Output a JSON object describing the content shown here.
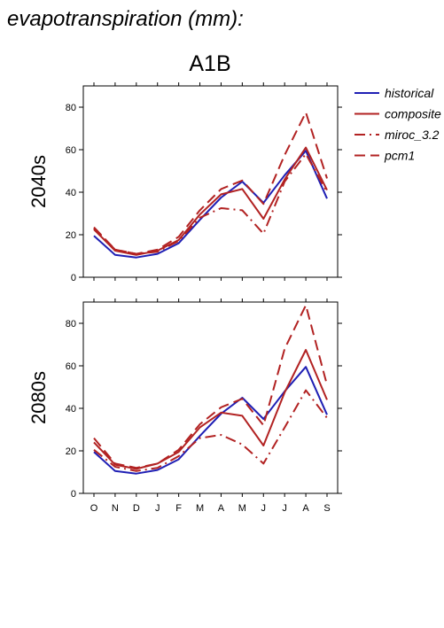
{
  "title": "evapotranspiration (mm):",
  "scenario": "A1B",
  "chart_data": {
    "type": "line",
    "categories": [
      "O",
      "N",
      "D",
      "J",
      "F",
      "M",
      "A",
      "M",
      "J",
      "J",
      "A",
      "S"
    ],
    "ylim": [
      0,
      90
    ],
    "yticks": [
      0,
      20,
      40,
      60,
      80
    ],
    "legend_placement": "right",
    "grid": false,
    "colors": {
      "historical": "#1f1fb4",
      "model": "#b22222"
    },
    "legend": [
      {
        "name": "historical",
        "style": "solid",
        "color": "#1f1fb4"
      },
      {
        "name": "composite",
        "style": "solid",
        "color": "#b22222"
      },
      {
        "name": "miroc_3.2",
        "style": "dashdot",
        "color": "#b22222"
      },
      {
        "name": "pcm1",
        "style": "dash",
        "color": "#b22222"
      }
    ],
    "panels": [
      {
        "label": "2040s",
        "series": [
          {
            "name": "historical",
            "values": [
              19.5,
              10.5,
              9.3,
              11,
              16,
              27,
              37.5,
              45,
              35,
              48,
              59.5,
              37
            ]
          },
          {
            "name": "composite",
            "values": [
              22.5,
              12.5,
              10.5,
              12.5,
              17.5,
              29.5,
              39,
              41.5,
              27.5,
              46,
              61,
              41
            ]
          },
          {
            "name": "miroc_3.2",
            "values": [
              23,
              13,
              11,
              12,
              17,
              28,
              32.5,
              31.5,
              20.5,
              45,
              58,
              40
            ]
          },
          {
            "name": "pcm1",
            "values": [
              23.5,
              13,
              11,
              13,
              19,
              31.5,
              41.5,
              45.5,
              34.5,
              57.5,
              77.5,
              46.5
            ]
          }
        ]
      },
      {
        "label": "2080s",
        "series": [
          {
            "name": "historical",
            "values": [
              19.5,
              10.5,
              9.3,
              11,
              16,
              27,
              37.5,
              45,
              35,
              48,
              59.5,
              37
            ]
          },
          {
            "name": "composite",
            "values": [
              24,
              13.5,
              11.5,
              14,
              19.5,
              31,
              38,
              36.5,
              22.5,
              47.5,
              67.5,
              44
            ]
          },
          {
            "name": "miroc_3.2",
            "values": [
              20.5,
              12.5,
              10.5,
              12,
              17.5,
              26,
              27.5,
              23,
              14,
              31,
              48.5,
              35.5
            ]
          },
          {
            "name": "pcm1",
            "values": [
              26,
              14,
              12,
              14,
              20.5,
              32.5,
              40.5,
              44.5,
              32,
              68,
              88.5,
              51
            ]
          }
        ]
      }
    ]
  }
}
